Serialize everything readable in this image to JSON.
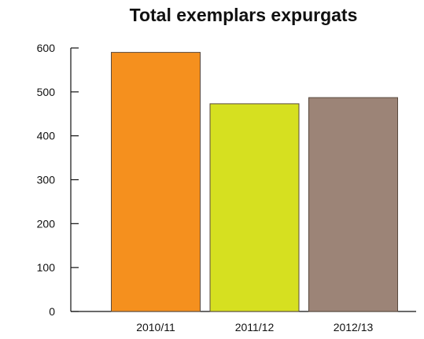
{
  "chart_data": {
    "type": "bar",
    "title": "Total exemplars expurgats",
    "categories": [
      "2010/11",
      "2011/12",
      "2012/13"
    ],
    "values": [
      590,
      473,
      487
    ],
    "colors": [
      "#f5901e",
      "#d6e020",
      "#9c8477"
    ],
    "bar_outline_color": "#5a4a3e",
    "xlabel": "",
    "ylabel": "",
    "ylim": [
      0,
      600
    ],
    "yticks": [
      0,
      100,
      200,
      300,
      400,
      500,
      600
    ],
    "grid": false,
    "legend": "none"
  }
}
